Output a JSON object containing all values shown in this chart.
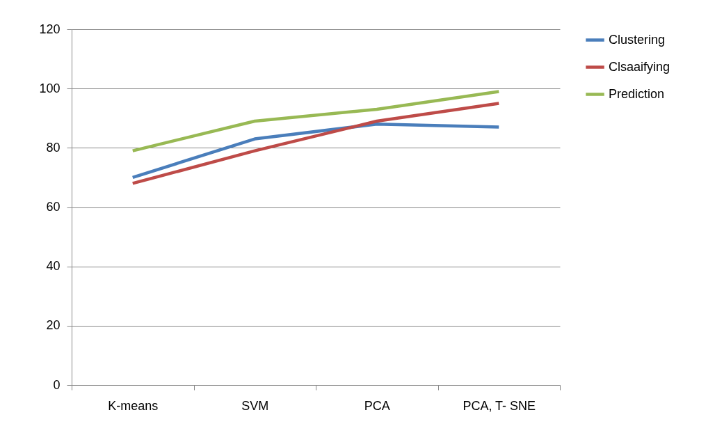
{
  "chart_data": {
    "type": "line",
    "categories": [
      "K-means",
      "SVM",
      "PCA",
      "PCA, T- SNE"
    ],
    "series": [
      {
        "name": "Clustering",
        "color": "#4a7ebb",
        "values": [
          70,
          83,
          88,
          87
        ]
      },
      {
        "name": "Clsaaifying",
        "color": "#be4b48",
        "values": [
          68,
          79,
          89,
          95
        ]
      },
      {
        "name": "Prediction",
        "color": "#98b954",
        "values": [
          79,
          89,
          93,
          99
        ]
      }
    ],
    "ylim": [
      0,
      120
    ],
    "yticks": [
      0,
      20,
      40,
      60,
      80,
      100,
      120
    ],
    "grid": "y",
    "legend": "right",
    "marker": "none",
    "line_style": "solid"
  }
}
